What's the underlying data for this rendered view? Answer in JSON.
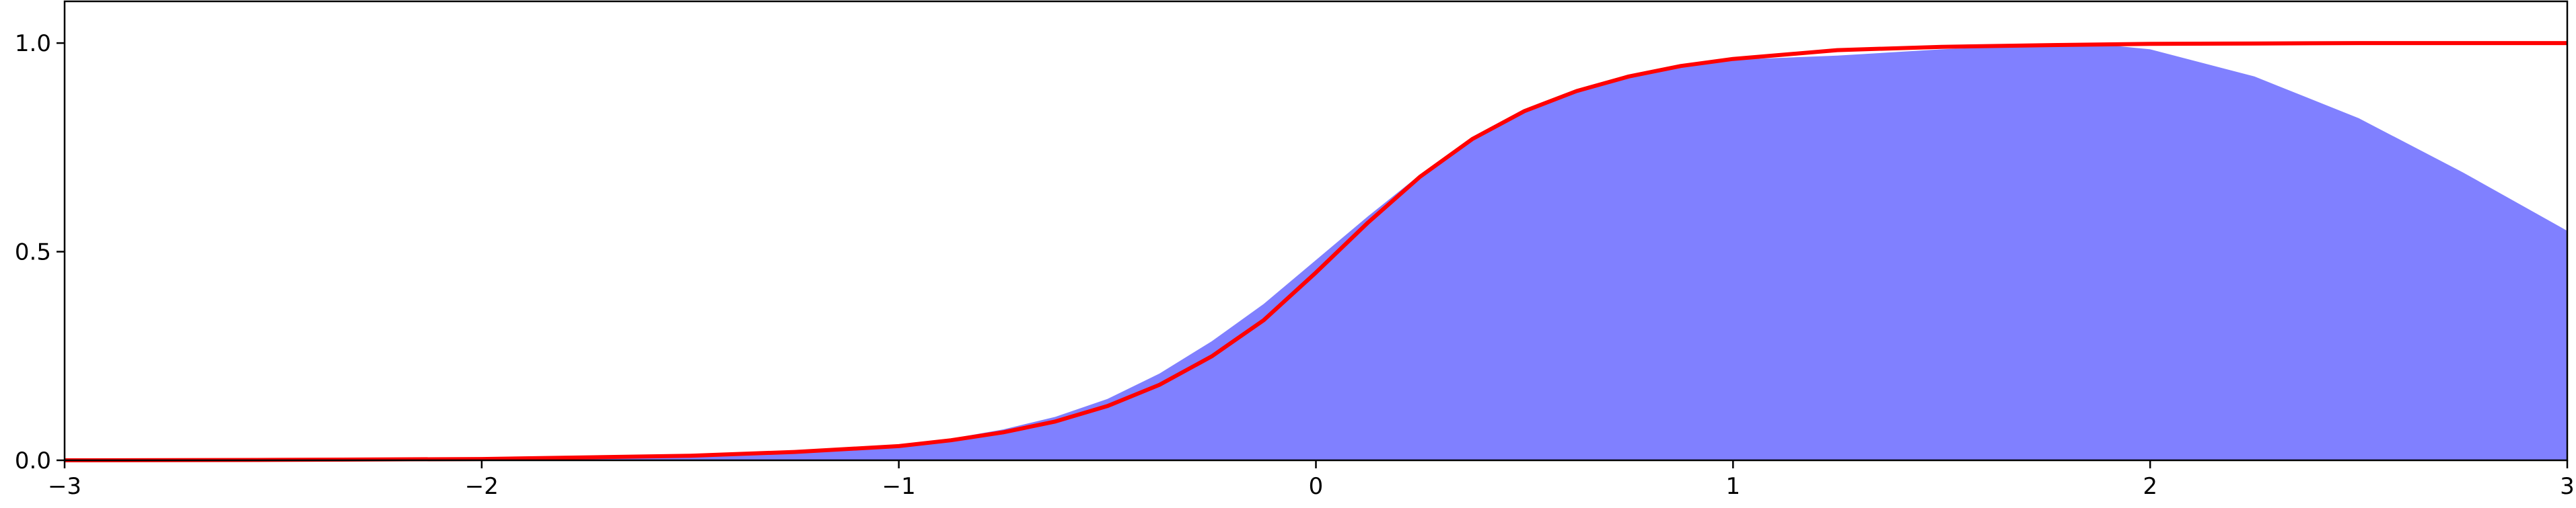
{
  "chart_data": {
    "type": "area",
    "title": "",
    "xlabel": "",
    "ylabel": "",
    "xlim": [
      -3,
      3
    ],
    "ylim": [
      0,
      1.1
    ],
    "grid": false,
    "legend": "none",
    "x_ticks": [
      -3,
      -2,
      -1,
      0,
      1,
      2,
      3
    ],
    "x_tick_labels": [
      "−3",
      "−2",
      "−1",
      "0",
      "1",
      "2",
      "3"
    ],
    "y_ticks": [
      0.0,
      0.5,
      1.0
    ],
    "y_tick_labels": [
      "0.0",
      "0.5",
      "1.0"
    ],
    "series": [
      {
        "kind": "filled-area",
        "color": "#8080ff",
        "x": [
          -3.0,
          -2.5,
          -2.0,
          -1.5,
          -1.25,
          -1.0,
          -0.875,
          -0.75,
          -0.625,
          -0.5,
          -0.375,
          -0.25,
          -0.125,
          0.0,
          0.125,
          0.25,
          0.375,
          0.5,
          0.625,
          0.75,
          0.875,
          1.0,
          1.25,
          1.5,
          1.75,
          1.9,
          2.0,
          2.25,
          2.5,
          2.75,
          3.0
        ],
        "y": [
          0.0,
          0.001,
          0.002,
          0.009,
          0.018,
          0.036,
          0.052,
          0.074,
          0.104,
          0.147,
          0.208,
          0.285,
          0.375,
          0.48,
          0.585,
          0.685,
          0.77,
          0.835,
          0.885,
          0.92,
          0.945,
          0.96,
          0.97,
          0.985,
          0.995,
          0.995,
          0.985,
          0.92,
          0.82,
          0.69,
          0.55
        ]
      },
      {
        "kind": "line",
        "color": "#ff0000",
        "x": [
          -3.0,
          -2.5,
          -2.0,
          -1.5,
          -1.25,
          -1.0,
          -0.875,
          -0.75,
          -0.625,
          -0.5,
          -0.375,
          -0.25,
          -0.125,
          0.0,
          0.125,
          0.25,
          0.375,
          0.5,
          0.625,
          0.75,
          0.875,
          1.0,
          1.25,
          1.5,
          1.75,
          2.0,
          2.25,
          2.5,
          2.75,
          3.0
        ],
        "y": [
          0.0,
          0.001,
          0.003,
          0.011,
          0.02,
          0.034,
          0.048,
          0.067,
          0.093,
          0.13,
          0.181,
          0.249,
          0.336,
          0.45,
          0.57,
          0.68,
          0.77,
          0.837,
          0.885,
          0.92,
          0.945,
          0.962,
          0.983,
          0.991,
          0.995,
          0.998,
          0.999,
          1.0,
          1.0,
          1.0
        ]
      }
    ]
  }
}
